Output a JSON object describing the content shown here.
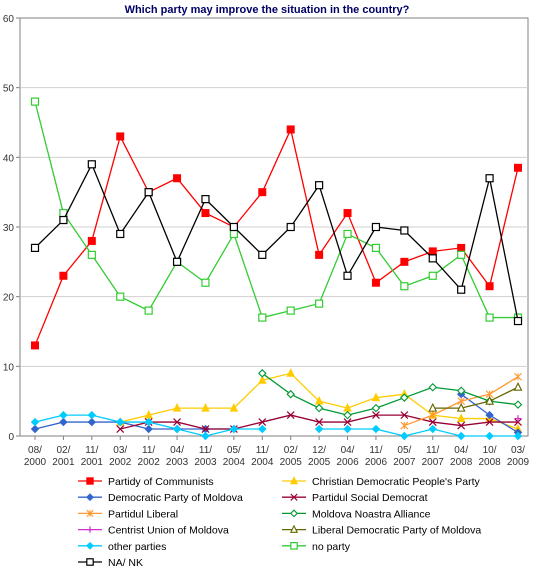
{
  "chart_data": {
    "type": "line",
    "title": "Which party may improve the situation in the country?",
    "xlabel": "",
    "ylabel": "",
    "ylim": [
      0,
      60
    ],
    "yticks": [
      0,
      10,
      20,
      30,
      40,
      50,
      60
    ],
    "grid": "horizontal",
    "legend_position": "bottom",
    "categories": [
      "08/ 2000",
      "02/ 2001",
      "11/ 2001",
      "03/ 2002",
      "11/ 2002",
      "04/ 2003",
      "11/ 2003",
      "05/ 2004",
      "11/ 2004",
      "02/ 2005",
      "12/ 2005",
      "04/ 2006",
      "11/ 2006",
      "05/ 2007",
      "11/ 2007",
      "04/ 2008",
      "10/ 2008",
      "03/ 2009"
    ],
    "series": [
      {
        "name": "Partidy of Communists",
        "color": "#ff0000",
        "marker": "square-filled",
        "values": [
          13,
          23,
          28,
          43,
          35,
          37,
          32,
          30,
          35,
          44,
          26,
          32,
          22,
          25,
          26.5,
          27,
          21.5,
          38.5
        ]
      },
      {
        "name": "Christian Democratic People's Party",
        "color": "#ffcc00",
        "marker": "triangle-filled",
        "values": [
          null,
          null,
          null,
          2,
          3,
          4,
          4,
          4,
          8,
          9,
          5,
          4,
          5.5,
          6,
          3,
          2.5,
          2.5,
          1
        ]
      },
      {
        "name": "Democratic Party of Moldova",
        "color": "#3366cc",
        "marker": "diamond-filled",
        "values": [
          1,
          2,
          2,
          2,
          1,
          1,
          1,
          1,
          null,
          null,
          null,
          null,
          null,
          null,
          null,
          6,
          3,
          0.5
        ]
      },
      {
        "name": "Partidul Social Democrat",
        "color": "#990033",
        "marker": "x",
        "values": [
          null,
          null,
          null,
          1,
          2,
          2,
          1,
          1,
          2,
          3,
          2,
          2,
          3,
          3,
          2,
          1.5,
          2,
          2
        ]
      },
      {
        "name": "Partidul Liberal",
        "color": "#ff9933",
        "marker": "star",
        "values": [
          null,
          null,
          null,
          null,
          null,
          null,
          null,
          null,
          null,
          null,
          null,
          null,
          null,
          1.5,
          3,
          5,
          6,
          8.5
        ]
      },
      {
        "name": "Moldova Noastra Alliance",
        "color": "#009933",
        "marker": "diamond-open",
        "values": [
          null,
          null,
          null,
          null,
          null,
          null,
          null,
          null,
          9,
          6,
          4,
          3,
          4,
          5.5,
          7,
          6.5,
          5,
          4.5
        ]
      },
      {
        "name": "Centrist Union of Moldova",
        "color": "#cc33cc",
        "marker": "plus",
        "values": [
          null,
          null,
          null,
          null,
          null,
          null,
          null,
          null,
          null,
          null,
          null,
          null,
          null,
          null,
          null,
          null,
          null,
          2.5
        ]
      },
      {
        "name": "Liberal Democratic Party of Moldova",
        "color": "#666600",
        "marker": "triangle-open",
        "values": [
          null,
          null,
          null,
          null,
          null,
          null,
          null,
          null,
          null,
          null,
          null,
          null,
          null,
          null,
          4,
          4,
          5,
          7
        ]
      },
      {
        "name": "other parties",
        "color": "#00ccff",
        "marker": "diamond-filled",
        "values": [
          2,
          3,
          3,
          2,
          2,
          1,
          0,
          1,
          1,
          null,
          1,
          1,
          1,
          0,
          1,
          0,
          0,
          0
        ]
      },
      {
        "name": "no party",
        "color": "#33cc33",
        "marker": "square-open",
        "values": [
          48,
          32,
          26,
          20,
          18,
          25,
          22,
          29,
          17,
          18,
          19,
          29,
          27,
          21.5,
          23,
          26,
          17,
          17
        ]
      },
      {
        "name": "NA/ NK",
        "color": "#000000",
        "marker": "square-open",
        "values": [
          27,
          31,
          39,
          29,
          35,
          25,
          34,
          30,
          26,
          30,
          36,
          23,
          30,
          29.5,
          25.5,
          21,
          37,
          16.5
        ]
      }
    ]
  }
}
